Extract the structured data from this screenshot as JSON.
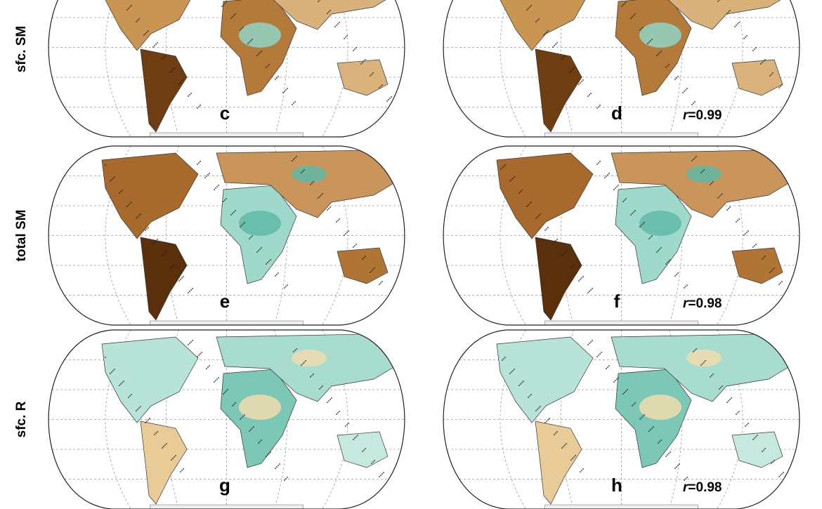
{
  "rows": [
    {
      "label": "sfc. SM",
      "panels": [
        {
          "letter": "c"
        },
        {
          "letter": "d",
          "r": {
            "symbol": "r",
            "text": "=0.99"
          }
        }
      ]
    },
    {
      "label": "total SM",
      "panels": [
        {
          "letter": "e"
        },
        {
          "letter": "f",
          "r": {
            "symbol": "r",
            "text": "=0.98"
          }
        }
      ]
    },
    {
      "label": "sfc. R",
      "panels": [
        {
          "letter": "g"
        },
        {
          "letter": "h",
          "r": {
            "symbol": "r",
            "text": "=0.98"
          }
        }
      ]
    }
  ]
}
